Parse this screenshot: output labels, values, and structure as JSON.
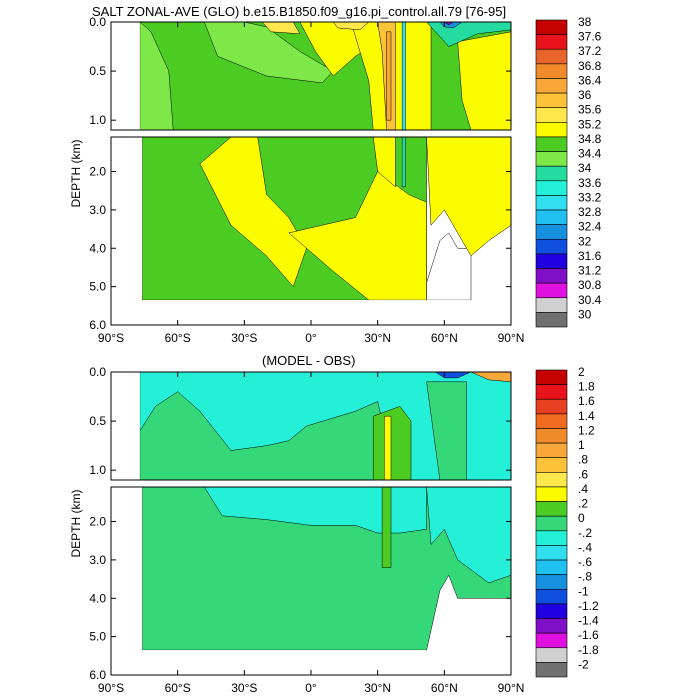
{
  "titles": {
    "top": "SALT ZONAL-AVE (GLO) b.e15.B1850.f09_g16.pi_control.all.79 [76-95]",
    "bottom": "(MODEL - OBS)"
  },
  "chart_data": [
    {
      "type": "heatmap",
      "title": "SALT ZONAL-AVE (GLO) b.e15.B1850.f09_g16.pi_control.all.79 [76-95]",
      "xlabel": "",
      "ylabel": "DEPTH (km)",
      "x_ticks": [
        "90°S",
        "60°S",
        "30°S",
        "0°",
        "30°N",
        "60°N",
        "90°N"
      ],
      "x_values": [
        -90,
        -60,
        -30,
        0,
        30,
        60,
        90
      ],
      "y_ticks_upper": [
        "0.0",
        "0.5",
        "1.0"
      ],
      "y_ticks_lower": [
        "2.0",
        "3.0",
        "4.0",
        "5.0",
        "6.0"
      ],
      "depth_breaks_km": [
        0,
        1.1,
        6.0
      ],
      "colorbar_labels": [
        "38",
        "37.6",
        "37.2",
        "36.8",
        "36.4",
        "36",
        "35.6",
        "35.2",
        "34.8",
        "34.4",
        "34",
        "33.6",
        "33.2",
        "32.8",
        "32.4",
        "32",
        "31.6",
        "31.2",
        "30.8",
        "30.4",
        "30"
      ],
      "colorbar_colors": [
        "#c40000",
        "#e8131b",
        "#e8662b",
        "#f08a2b",
        "#f8a838",
        "#fcc238",
        "#fde74a",
        "#fcfc00",
        "#4ccc22",
        "#7ee848",
        "#24dca0",
        "#24f0d8",
        "#30e0f0",
        "#20c0f0",
        "#1890e0",
        "#1050e0",
        "#2000e0",
        "#8010c8",
        "#e010e0",
        "#d0d0d0",
        "#707070"
      ],
      "dominant_values": {
        "deep_south": 34.8,
        "mid_deep_tropics": 35.2,
        "surface_subtropics": 35.6,
        "arctic_surface": 32.0
      }
    },
    {
      "type": "heatmap",
      "title": "(MODEL - OBS)",
      "xlabel": "",
      "ylabel": "DEPTH (km)",
      "x_ticks": [
        "90°S",
        "60°S",
        "30°S",
        "0°",
        "30°N",
        "60°N",
        "90°N"
      ],
      "x_values": [
        -90,
        -60,
        -30,
        0,
        30,
        60,
        90
      ],
      "y_ticks_upper": [
        "0.0",
        "0.5",
        "1.0"
      ],
      "y_ticks_lower": [
        "2.0",
        "3.0",
        "4.0",
        "5.0",
        "6.0"
      ],
      "depth_breaks_km": [
        0,
        1.1,
        6.0
      ],
      "colorbar_labels": [
        "2",
        "1.8",
        "1.6",
        "1.4",
        "1.2",
        "1",
        ".8",
        ".6",
        ".4",
        ".2",
        "0",
        "-.2",
        "-.4",
        "-.6",
        "-.8",
        "-1",
        "-1.2",
        "-1.4",
        "-1.6",
        "-1.8",
        "-2"
      ],
      "colorbar_colors": [
        "#c40000",
        "#e8131b",
        "#e84020",
        "#f06a20",
        "#f08a2b",
        "#f8a838",
        "#fcc238",
        "#fde74a",
        "#fcfc00",
        "#4ccc22",
        "#34d878",
        "#24f0d8",
        "#30e0f0",
        "#20c0f0",
        "#1890e0",
        "#1050e0",
        "#2000e0",
        "#8010c8",
        "#e010e0",
        "#d0d0d0",
        "#707070"
      ],
      "dominant_values": {
        "deep_ocean": 0.0,
        "upper_south": -0.2,
        "subtropical_north_column": 0.4,
        "arctic_surface": -1.4
      }
    }
  ]
}
